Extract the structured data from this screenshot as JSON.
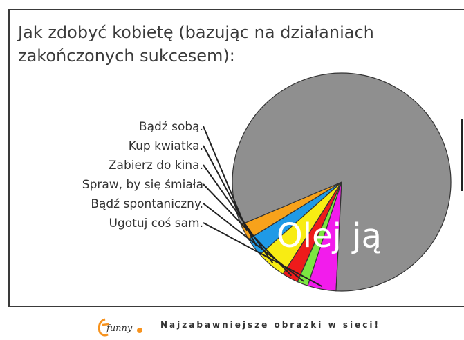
{
  "chart_data": {
    "type": "pie",
    "title_lines": [
      "Jak zdobyć kobietę (bazując na działaniach",
      "zakończonych sukcesem):"
    ],
    "slices": [
      {
        "label": "Bądź sobą.",
        "value": 2.4,
        "color": "#f7a21b"
      },
      {
        "label": "Kup kwiatka.",
        "value": 2.8,
        "color": "#1f9ae6"
      },
      {
        "label": "Zabierz do kina.",
        "value": 4.4,
        "color": "#f8ec13"
      },
      {
        "label": "Spraw, by się śmiała",
        "value": 2.4,
        "color": "#ee1b1b"
      },
      {
        "label": "Bądź spontaniczny.",
        "value": 1.6,
        "color": "#7ce641"
      },
      {
        "label": "Ugotuj coś sam.",
        "value": 4.2,
        "color": "#f21cec"
      },
      {
        "label": "Olej ją",
        "value": 82.2,
        "color": "#8f8f8f"
      }
    ]
  },
  "footer": {
    "logo_text": "funny",
    "tagline": "Najzabawniejsze obrazki w sieci!"
  }
}
